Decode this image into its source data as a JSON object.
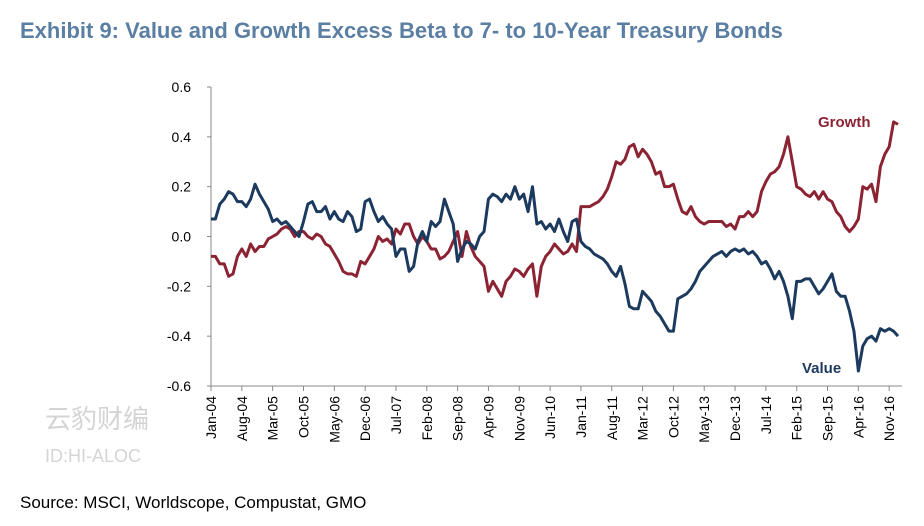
{
  "chart_data": {
    "type": "line",
    "title": "Exhibit 9: Value and Growth Excess Beta to 7- to 10-Year Treasury Bonds",
    "source": "Source: MSCI, Worldscope, Compustat, GMO",
    "watermark": [
      "云豹财编",
      "ID:HI-ALOC"
    ],
    "categories": [
      "Jan-04",
      null,
      null,
      null,
      null,
      null,
      null,
      "Aug-04",
      null,
      null,
      null,
      null,
      null,
      null,
      "Mar-05",
      null,
      null,
      null,
      null,
      null,
      null,
      "Oct-05",
      null,
      null,
      null,
      null,
      null,
      null,
      "May-06",
      null,
      null,
      null,
      null,
      null,
      null,
      "Dec-06",
      null,
      null,
      null,
      null,
      null,
      null,
      "Jul-07",
      null,
      null,
      null,
      null,
      null,
      null,
      "Feb-08",
      null,
      null,
      null,
      null,
      null,
      null,
      "Sep-08",
      null,
      null,
      null,
      null,
      null,
      null,
      "Apr-09",
      null,
      null,
      null,
      null,
      null,
      null,
      "Nov-09",
      null,
      null,
      null,
      null,
      null,
      null,
      "Jun-10",
      null,
      null,
      null,
      null,
      null,
      null,
      "Jan-11",
      null,
      null,
      null,
      null,
      null,
      null,
      "Aug-11",
      null,
      null,
      null,
      null,
      null,
      null,
      "Mar-12",
      null,
      null,
      null,
      null,
      null,
      null,
      "Oct-12",
      null,
      null,
      null,
      null,
      null,
      null,
      "May-13",
      null,
      null,
      null,
      null,
      null,
      null,
      "Dec-13",
      null,
      null,
      null,
      null,
      null,
      null,
      "Jul-14",
      null,
      null,
      null,
      null,
      null,
      null,
      "Feb-15",
      null,
      null,
      null,
      null,
      null,
      null,
      "Sep-15",
      null,
      null,
      null,
      null,
      null,
      null,
      "Apr-16",
      null,
      null,
      null,
      null,
      null,
      null,
      "Nov-16",
      null,
      null
    ],
    "series": [
      {
        "name": "Growth",
        "color": "#8c2333",
        "values": [
          -0.08,
          -0.08,
          -0.11,
          -0.11,
          -0.16,
          -0.15,
          -0.08,
          -0.05,
          -0.08,
          -0.03,
          -0.06,
          -0.04,
          -0.04,
          -0.01,
          0.0,
          0.01,
          0.03,
          0.04,
          0.03,
          0.0,
          0.02,
          0.02,
          0.0,
          -0.01,
          0.01,
          0.0,
          -0.03,
          -0.04,
          -0.07,
          -0.1,
          -0.14,
          -0.15,
          -0.15,
          -0.16,
          -0.1,
          -0.11,
          -0.08,
          -0.05,
          0.0,
          -0.02,
          -0.01,
          -0.03,
          0.03,
          0.01,
          0.05,
          0.05,
          0.0,
          -0.03,
          0.0,
          -0.02,
          -0.05,
          -0.05,
          -0.09,
          -0.08,
          -0.06,
          -0.02,
          0.02,
          -0.08,
          0.02,
          -0.04,
          -0.08,
          -0.1,
          -0.12,
          -0.22,
          -0.18,
          -0.21,
          -0.24,
          -0.18,
          -0.16,
          -0.13,
          -0.14,
          -0.16,
          -0.13,
          -0.11,
          -0.24,
          -0.12,
          -0.08,
          -0.06,
          -0.03,
          -0.05,
          -0.07,
          -0.06,
          -0.03,
          -0.06,
          0.12,
          0.12,
          0.12,
          0.13,
          0.14,
          0.16,
          0.19,
          0.24,
          0.3,
          0.29,
          0.31,
          0.36,
          0.37,
          0.32,
          0.35,
          0.33,
          0.3,
          0.25,
          0.26,
          0.2,
          0.2,
          0.21,
          0.15,
          0.1,
          0.09,
          0.12,
          0.08,
          0.06,
          0.05,
          0.06,
          0.06,
          0.06,
          0.06,
          0.04,
          0.05,
          0.03,
          0.08,
          0.08,
          0.1,
          0.08,
          0.1,
          0.18,
          0.22,
          0.25,
          0.26,
          0.28,
          0.33,
          0.4,
          0.3,
          0.2,
          0.19,
          0.17,
          0.16,
          0.18,
          0.15,
          0.18,
          0.15,
          0.14,
          0.1,
          0.08,
          0.04,
          0.02,
          0.04,
          0.07,
          0.2,
          0.19,
          0.21,
          0.14,
          0.28,
          0.33,
          0.36,
          0.46,
          0.45
        ]
      },
      {
        "name": "Value",
        "color": "#1c3a5e",
        "values": [
          0.07,
          0.07,
          0.13,
          0.15,
          0.18,
          0.17,
          0.14,
          0.14,
          0.12,
          0.15,
          0.21,
          0.17,
          0.14,
          0.11,
          0.06,
          0.07,
          0.05,
          0.06,
          0.04,
          0.02,
          0.0,
          0.06,
          0.13,
          0.14,
          0.1,
          0.1,
          0.12,
          0.07,
          0.1,
          0.07,
          0.06,
          0.1,
          0.08,
          0.02,
          0.03,
          0.14,
          0.15,
          0.1,
          0.06,
          0.08,
          0.05,
          0.03,
          -0.08,
          -0.05,
          -0.05,
          -0.14,
          -0.12,
          -0.02,
          0.02,
          -0.02,
          0.06,
          0.04,
          0.06,
          0.15,
          0.1,
          0.05,
          -0.1,
          -0.05,
          -0.02,
          -0.03,
          -0.05,
          0.0,
          0.02,
          0.15,
          0.17,
          0.16,
          0.14,
          0.17,
          0.15,
          0.2,
          0.15,
          0.17,
          0.1,
          0.2,
          0.05,
          0.06,
          0.03,
          0.05,
          0.02,
          0.07,
          0.02,
          -0.02,
          0.06,
          0.07,
          -0.02,
          -0.04,
          -0.05,
          -0.07,
          -0.08,
          -0.09,
          -0.11,
          -0.14,
          -0.16,
          -0.12,
          -0.19,
          -0.28,
          -0.29,
          -0.29,
          -0.22,
          -0.24,
          -0.26,
          -0.3,
          -0.32,
          -0.35,
          -0.38,
          -0.38,
          -0.25,
          -0.24,
          -0.23,
          -0.21,
          -0.18,
          -0.14,
          -0.12,
          -0.1,
          -0.08,
          -0.07,
          -0.06,
          -0.08,
          -0.06,
          -0.05,
          -0.06,
          -0.05,
          -0.07,
          -0.06,
          -0.08,
          -0.11,
          -0.1,
          -0.13,
          -0.17,
          -0.14,
          -0.18,
          -0.24,
          -0.33,
          -0.18,
          -0.18,
          -0.17,
          -0.17,
          -0.2,
          -0.23,
          -0.21,
          -0.18,
          -0.15,
          -0.22,
          -0.24,
          -0.24,
          -0.3,
          -0.38,
          -0.54,
          -0.44,
          -0.41,
          -0.4,
          -0.42,
          -0.37,
          -0.38,
          -0.37,
          -0.38,
          -0.4
        ]
      }
    ],
    "ylim": [
      -0.6,
      0.6
    ],
    "yticks": [
      {
        "value": 0.6,
        "label": "0.6"
      },
      {
        "value": 0.4,
        "label": "0.4"
      },
      {
        "value": 0.2,
        "label": "0.2"
      },
      {
        "value": 0,
        "label": "0.0"
      },
      {
        "value": -0.2,
        "label": "-0.2"
      },
      {
        "value": -0.4,
        "label": "-0.4"
      },
      {
        "value": -0.6,
        "label": "-0.6"
      }
    ]
  }
}
